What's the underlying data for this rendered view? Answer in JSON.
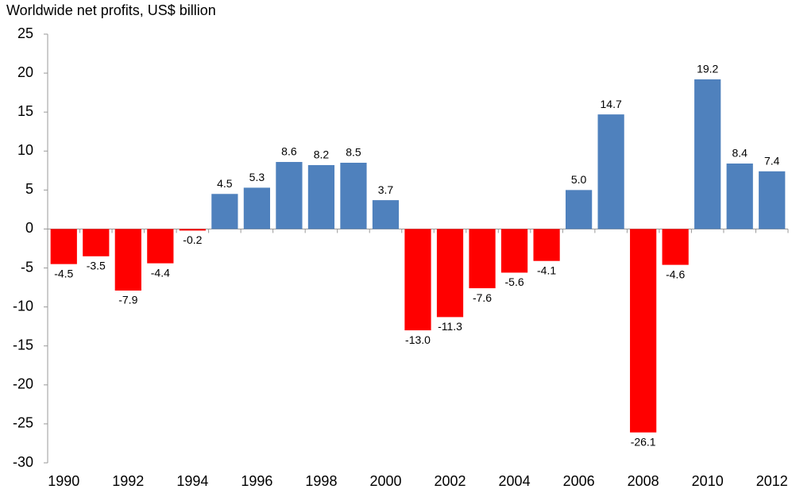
{
  "chart_data": {
    "type": "bar",
    "title": "Worldwide net profits, US$ billion",
    "categories": [
      "1990",
      null,
      "1992",
      null,
      "1994",
      null,
      "1996",
      null,
      "1998",
      null,
      "2000",
      null,
      "2002",
      null,
      "2004",
      null,
      "2006",
      null,
      "2008",
      null,
      "2010",
      null,
      "2012"
    ],
    "values": [
      -4.5,
      -3.5,
      -7.9,
      -4.4,
      -0.2,
      4.5,
      5.3,
      8.6,
      8.2,
      8.5,
      3.7,
      -13.0,
      -11.3,
      -7.6,
      -5.6,
      -4.1,
      5.0,
      14.7,
      -26.1,
      -4.6,
      19.2,
      8.4,
      7.4
    ],
    "value_labels": [
      "-4.5",
      "-3.5",
      "-7.9",
      "-4.4",
      "-0.2",
      "4.5",
      "5.3",
      "8.6",
      "8.2",
      "8.5",
      "3.7",
      "-13.0",
      "-11.3",
      "-7.6",
      "-5.6",
      "-4.1",
      "5.0",
      "14.7",
      "-26.1",
      "-4.6",
      "19.2",
      "8.4",
      "7.4"
    ],
    "positive_color": "#4f81bd",
    "negative_color": "#ff0000",
    "ylim": [
      -30,
      25
    ],
    "yticks": [
      -30,
      -25,
      -20,
      -15,
      -10,
      -5,
      0,
      5,
      10,
      15,
      20,
      25
    ],
    "grid": false
  }
}
